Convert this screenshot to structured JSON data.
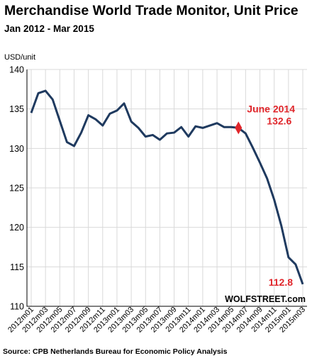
{
  "chart_data": {
    "type": "line",
    "title": "Merchandise World Trade Monitor, Unit Price",
    "subtitle": "Jan 2012 - Mar 2015",
    "ylabel": "USD/unit",
    "ylim": [
      110,
      140
    ],
    "yticks": [
      110,
      115,
      120,
      125,
      130,
      135,
      140
    ],
    "grid": true,
    "x": [
      "2012m01",
      "2012m02",
      "2012m03",
      "2012m04",
      "2012m05",
      "2012m06",
      "2012m07",
      "2012m08",
      "2012m09",
      "2012m10",
      "2012m11",
      "2012m12",
      "2013m01",
      "2013m02",
      "2013m03",
      "2013m04",
      "2013m05",
      "2013m06",
      "2013m07",
      "2013m08",
      "2013m09",
      "2013m10",
      "2013m11",
      "2013m12",
      "2014m01",
      "2014m02",
      "2014m03",
      "2014m04",
      "2014m05",
      "2014m06",
      "2014m07",
      "2014m08",
      "2014m09",
      "2014m10",
      "2014m11",
      "2014m12",
      "2015m01",
      "2015m02",
      "2015m03"
    ],
    "xtick_labels": [
      "2012m01",
      "2012m03",
      "2012m05",
      "2012m07",
      "2012m09",
      "2012m11",
      "2013m01",
      "2013m03",
      "2013m05",
      "2013m07",
      "2013m09",
      "2013m11",
      "2014m01",
      "2014m03",
      "2014m05",
      "2014m07",
      "2014m09",
      "2014m11",
      "2015m01",
      "2015m03"
    ],
    "series": [
      {
        "values": [
          134.5,
          137.0,
          137.3,
          136.2,
          133.5,
          130.8,
          130.3,
          132.0,
          134.2,
          133.7,
          132.9,
          134.4,
          134.8,
          135.7,
          133.4,
          132.6,
          131.5,
          131.7,
          131.1,
          131.9,
          132.0,
          132.7,
          131.5,
          132.8,
          132.6,
          132.9,
          133.2,
          132.7,
          132.7,
          132.6,
          131.9,
          130.1,
          128.2,
          126.2,
          123.5,
          120.2,
          116.2,
          115.3,
          112.8
        ],
        "color": "#1f3a5f"
      }
    ],
    "annotations": [
      {
        "x": "2014m06",
        "y": 132.6,
        "line1": "June 2014",
        "line2": "132.6",
        "color": "#e0262b"
      },
      {
        "x": "2015m03",
        "y": 112.8,
        "line1": "112.8",
        "color": "#e0262b"
      }
    ],
    "watermark": "WOLFSTREET.com",
    "source": "Source: CPB Netherlands Bureau for Economic Policy Analysis"
  }
}
